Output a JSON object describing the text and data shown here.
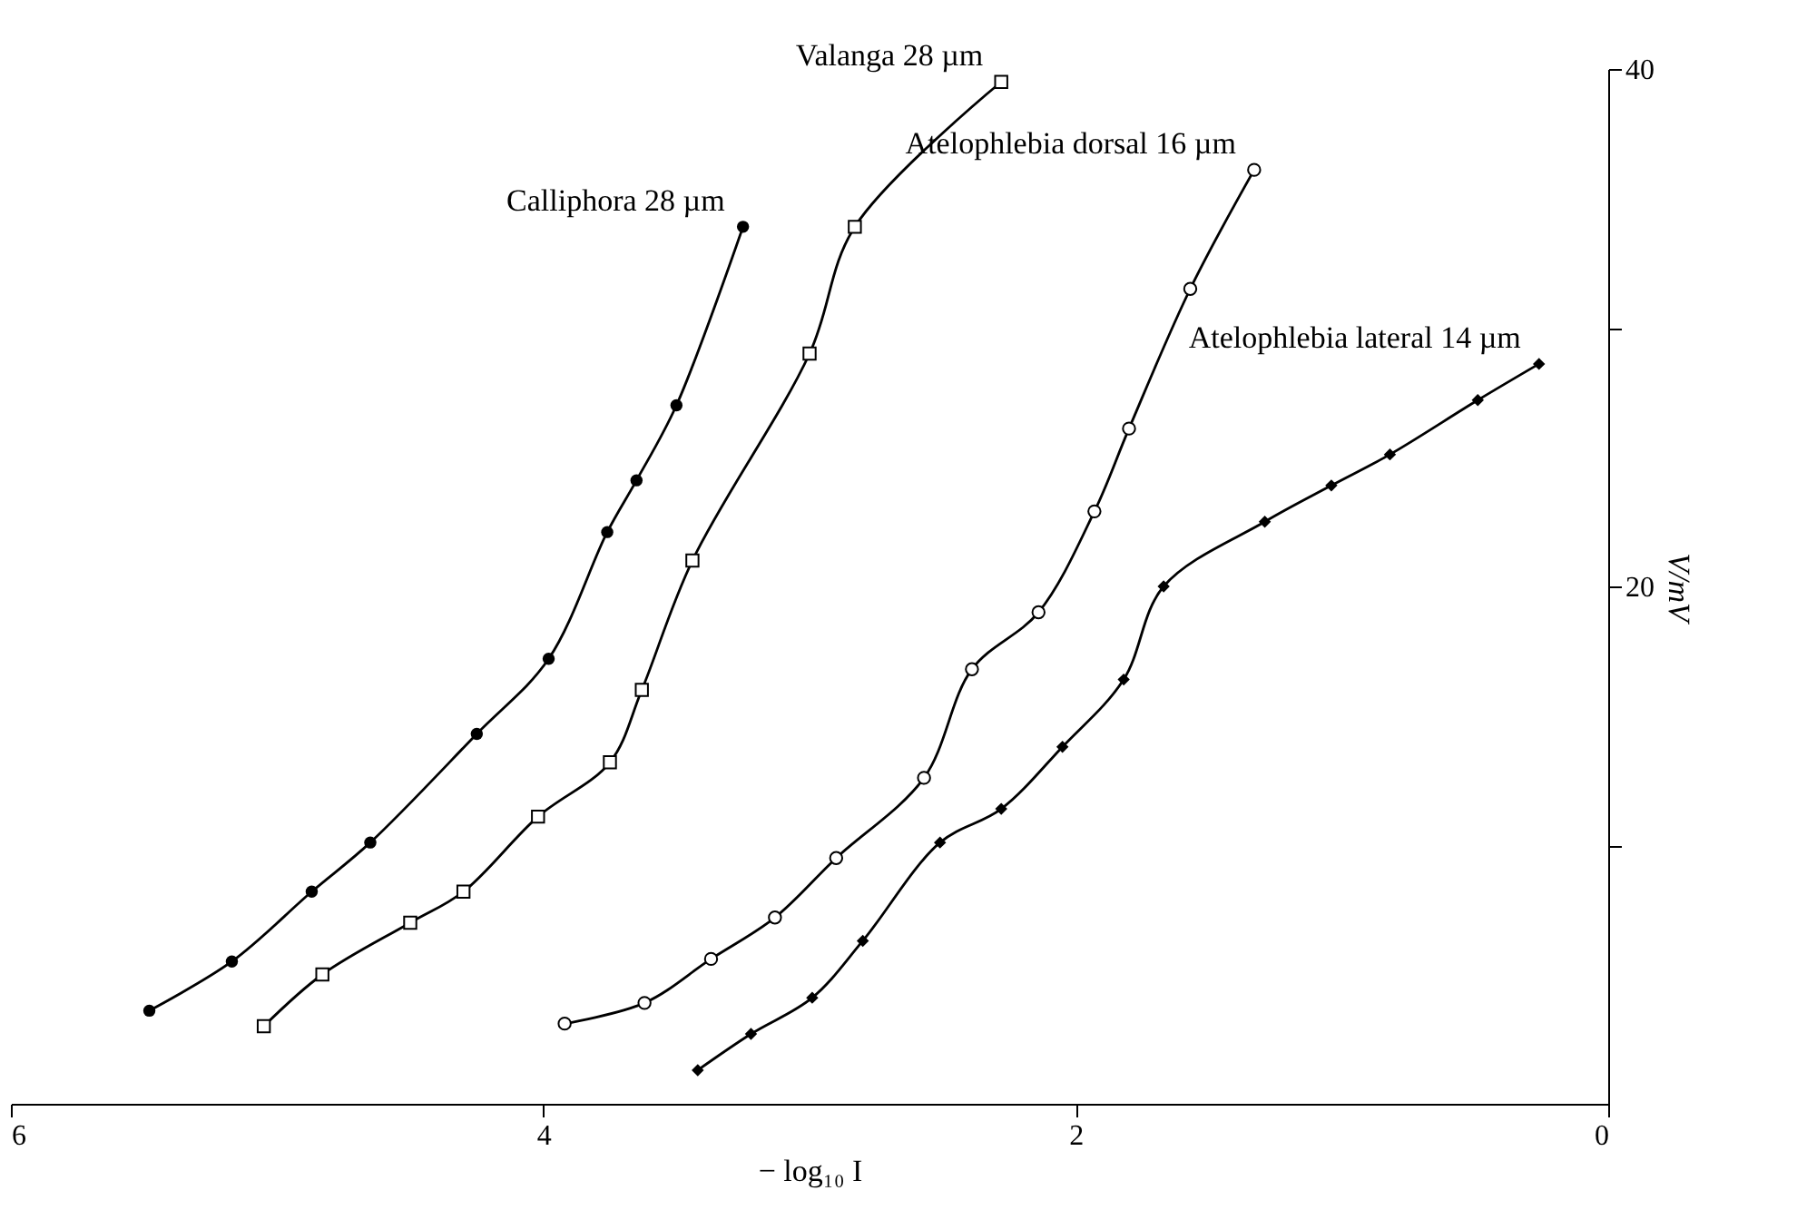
{
  "chart_data": {
    "type": "line",
    "xlabel": "− log₁₀ I",
    "ylabel": "V/mV",
    "xlim": [
      6,
      0
    ],
    "xticks": [
      6,
      4,
      2,
      0
    ],
    "ylim": [
      0,
      40
    ],
    "yticks": [
      {
        "value": 10,
        "label": null
      },
      20,
      {
        "value": 30,
        "label": null
      },
      40
    ],
    "grid": false,
    "line_style": "solid",
    "series": [
      {
        "name": "Calliphora 28 µm",
        "color": "#000000",
        "marker": "circle",
        "x": [
          5.48,
          5.17,
          4.87,
          4.65,
          4.25,
          3.98,
          3.76,
          3.65,
          3.5,
          3.25
        ],
        "values": [
          3.6,
          5.5,
          8.2,
          10.1,
          14.3,
          17.2,
          22.1,
          24.1,
          27.0,
          33.9
        ]
      },
      {
        "name": "Valanga 28 µm",
        "color": "#000000",
        "marker": "square",
        "x": [
          5.05,
          4.83,
          4.5,
          4.3,
          4.02,
          3.75,
          3.63,
          3.44,
          3.0,
          2.83,
          2.28
        ],
        "values": [
          3.0,
          5.0,
          7.0,
          8.2,
          11.1,
          13.2,
          16.0,
          21.0,
          29.0,
          33.9,
          39.5
        ]
      },
      {
        "name": "Atelophlebia dorsal 16 µm",
        "color": "#000000",
        "marker": "circle",
        "x": [
          3.92,
          3.62,
          3.37,
          3.13,
          2.9,
          2.57,
          2.39,
          2.14,
          1.93,
          1.8,
          1.57,
          1.33
        ],
        "values": [
          3.1,
          3.9,
          5.6,
          7.2,
          9.5,
          12.6,
          16.8,
          19.0,
          22.9,
          26.1,
          31.5,
          36.1
        ]
      },
      {
        "name": "Atelophlebia lateral 14 µm",
        "color": "#000000",
        "marker": "diamond",
        "x": [
          3.42,
          3.22,
          2.99,
          2.8,
          2.51,
          2.28,
          2.05,
          1.82,
          1.67,
          1.29,
          1.04,
          0.82,
          0.49,
          0.26
        ],
        "values": [
          1.3,
          2.7,
          4.1,
          6.3,
          10.1,
          11.4,
          13.8,
          16.4,
          20.0,
          22.5,
          23.9,
          25.1,
          27.2,
          28.6
        ]
      }
    ]
  }
}
